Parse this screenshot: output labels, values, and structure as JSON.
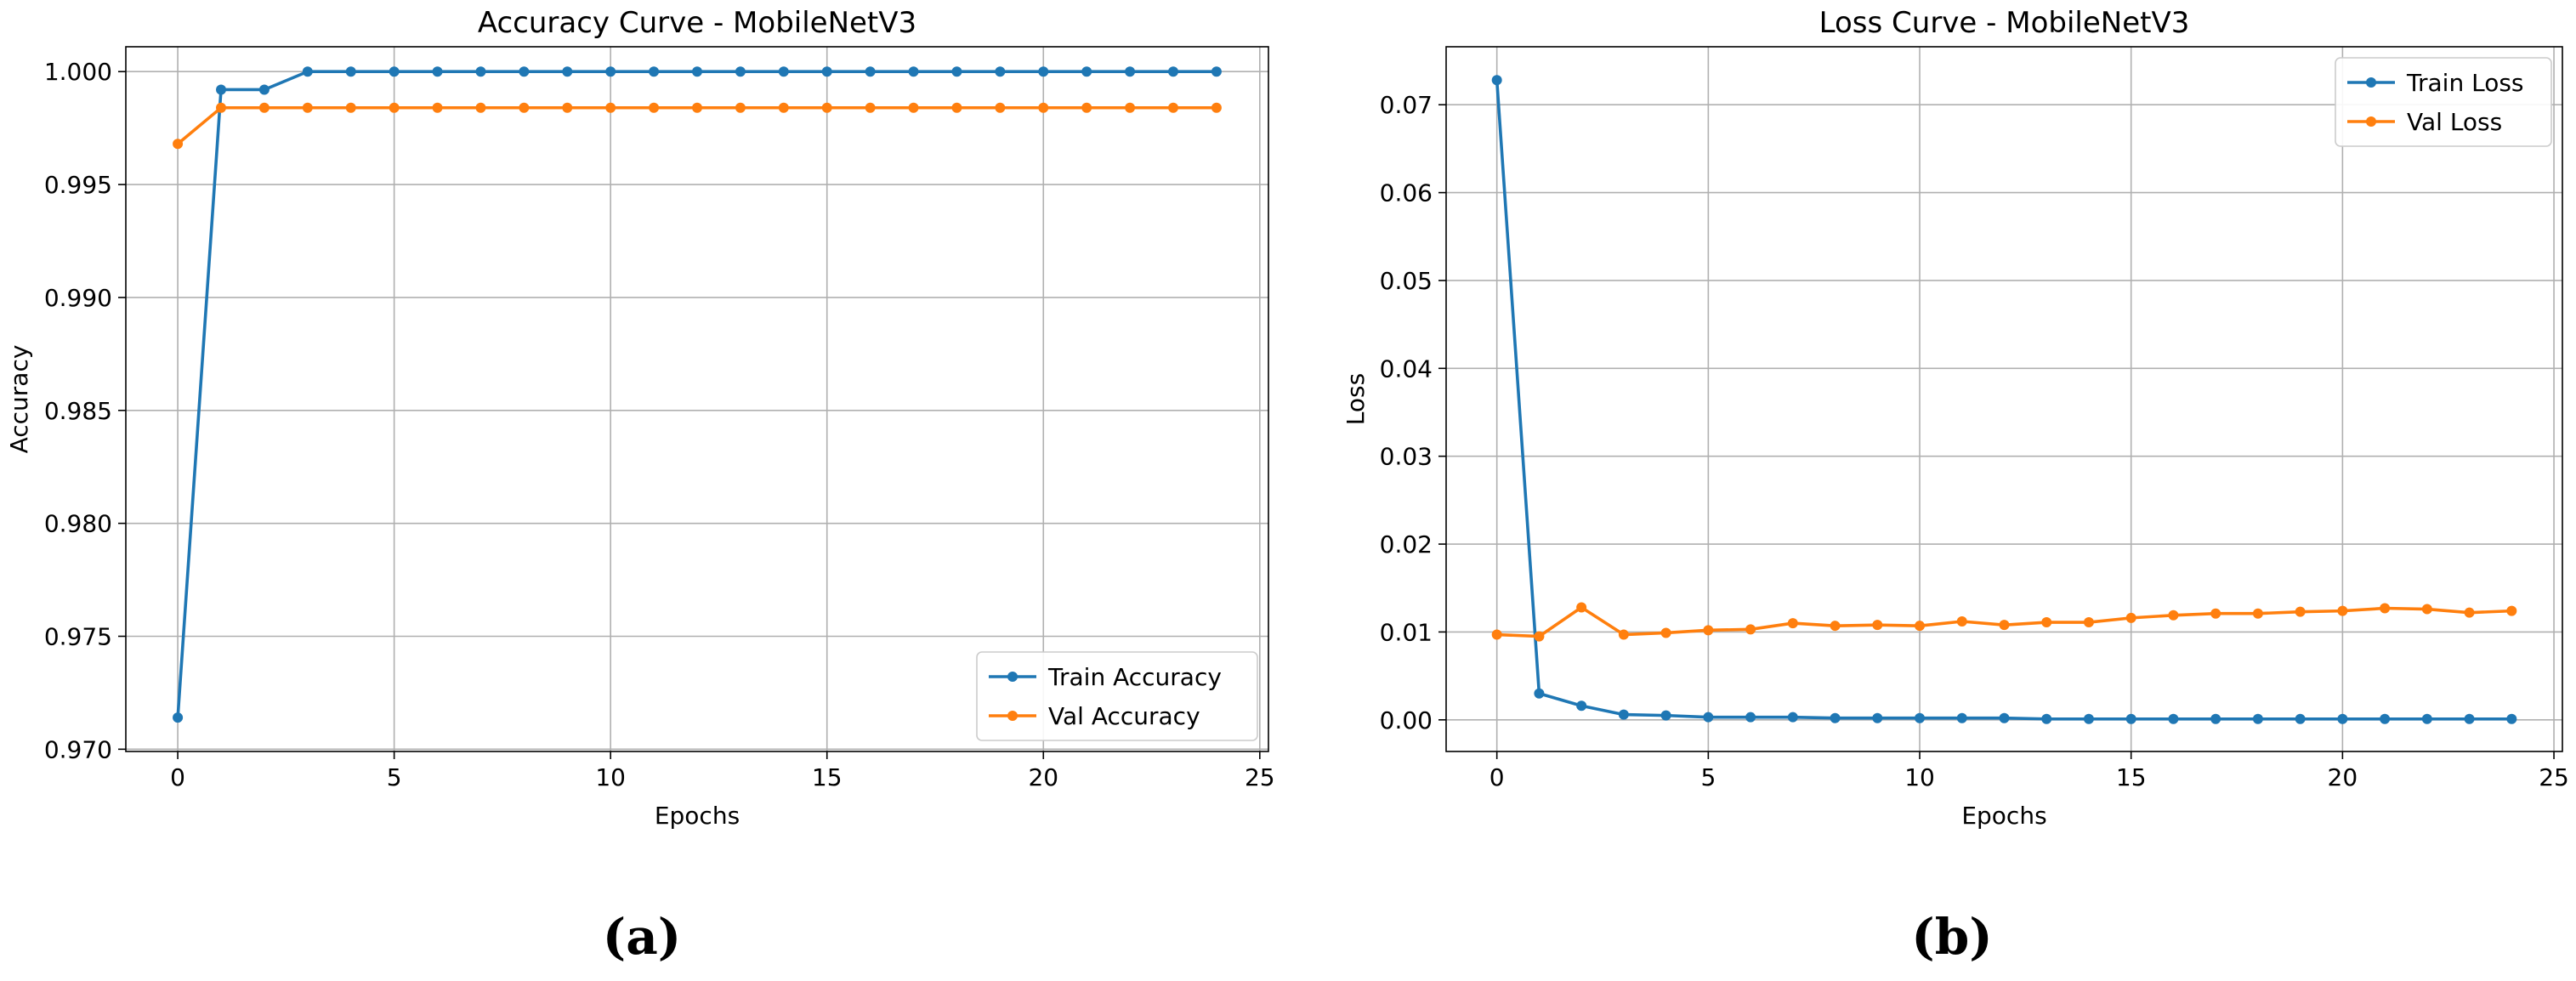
{
  "chart_data": [
    {
      "type": "line",
      "title": "Accuracy Curve - MobileNetV3",
      "xlabel": "Epochs",
      "ylabel": "Accuracy",
      "panel_label": "(a)",
      "xlim": [
        -1.2,
        25.2
      ],
      "ylim": [
        0.9699,
        1.0011
      ],
      "x_ticks": [
        0,
        5,
        10,
        15,
        20,
        25
      ],
      "y_ticks": [
        0.97,
        0.975,
        0.98,
        0.985,
        0.99,
        0.995,
        1.0
      ],
      "y_tick_labels": [
        "0.970",
        "0.975",
        "0.980",
        "0.985",
        "0.990",
        "0.995",
        "1.000"
      ],
      "grid": true,
      "legend_position": "lower-right",
      "x": [
        0,
        1,
        2,
        3,
        4,
        5,
        6,
        7,
        8,
        9,
        10,
        11,
        12,
        13,
        14,
        15,
        16,
        17,
        18,
        19,
        20,
        21,
        22,
        23,
        24
      ],
      "series": [
        {
          "name": "Train Accuracy",
          "color": "#1f77b4",
          "values": [
            0.9714,
            0.9992,
            0.9992,
            1.0,
            1.0,
            1.0,
            1.0,
            1.0,
            1.0,
            1.0,
            1.0,
            1.0,
            1.0,
            1.0,
            1.0,
            1.0,
            1.0,
            1.0,
            1.0,
            1.0,
            1.0,
            1.0,
            1.0,
            1.0,
            1.0
          ]
        },
        {
          "name": "Val Accuracy",
          "color": "#ff7f0e",
          "values": [
            0.9968,
            0.9984,
            0.9984,
            0.9984,
            0.9984,
            0.9984,
            0.9984,
            0.9984,
            0.9984,
            0.9984,
            0.9984,
            0.9984,
            0.9984,
            0.9984,
            0.9984,
            0.9984,
            0.9984,
            0.9984,
            0.9984,
            0.9984,
            0.9984,
            0.9984,
            0.9984,
            0.9984,
            0.9984
          ]
        }
      ]
    },
    {
      "type": "line",
      "title": "Loss Curve - MobileNetV3",
      "xlabel": "Epochs",
      "ylabel": "Loss",
      "panel_label": "(b)",
      "xlim": [
        -1.2,
        25.2
      ],
      "ylim": [
        -0.0036,
        0.0766
      ],
      "x_ticks": [
        0,
        5,
        10,
        15,
        20,
        25
      ],
      "y_ticks": [
        0.0,
        0.01,
        0.02,
        0.03,
        0.04,
        0.05,
        0.06,
        0.07
      ],
      "y_tick_labels": [
        "0.00",
        "0.01",
        "0.02",
        "0.03",
        "0.04",
        "0.05",
        "0.06",
        "0.07"
      ],
      "grid": true,
      "legend_position": "upper-right",
      "x": [
        0,
        1,
        2,
        3,
        4,
        5,
        6,
        7,
        8,
        9,
        10,
        11,
        12,
        13,
        14,
        15,
        16,
        17,
        18,
        19,
        20,
        21,
        22,
        23,
        24
      ],
      "series": [
        {
          "name": "Train Loss",
          "color": "#1f77b4",
          "values": [
            0.0728,
            0.003,
            0.0016,
            0.0006,
            0.0005,
            0.0003,
            0.0003,
            0.0003,
            0.0002,
            0.0002,
            0.0002,
            0.0002,
            0.0002,
            0.0001,
            0.0001,
            0.0001,
            0.0001,
            0.0001,
            0.0001,
            0.0001,
            0.0001,
            0.0001,
            0.0001,
            0.0001,
            0.0001
          ]
        },
        {
          "name": "Val Loss",
          "color": "#ff7f0e",
          "values": [
            0.0097,
            0.0095,
            0.0128,
            0.0097,
            0.0099,
            0.0102,
            0.0103,
            0.011,
            0.0107,
            0.0108,
            0.0107,
            0.0112,
            0.0108,
            0.0111,
            0.0111,
            0.0116,
            0.0119,
            0.0121,
            0.0121,
            0.0123,
            0.0124,
            0.0127,
            0.0126,
            0.0122,
            0.0124
          ]
        }
      ]
    }
  ]
}
